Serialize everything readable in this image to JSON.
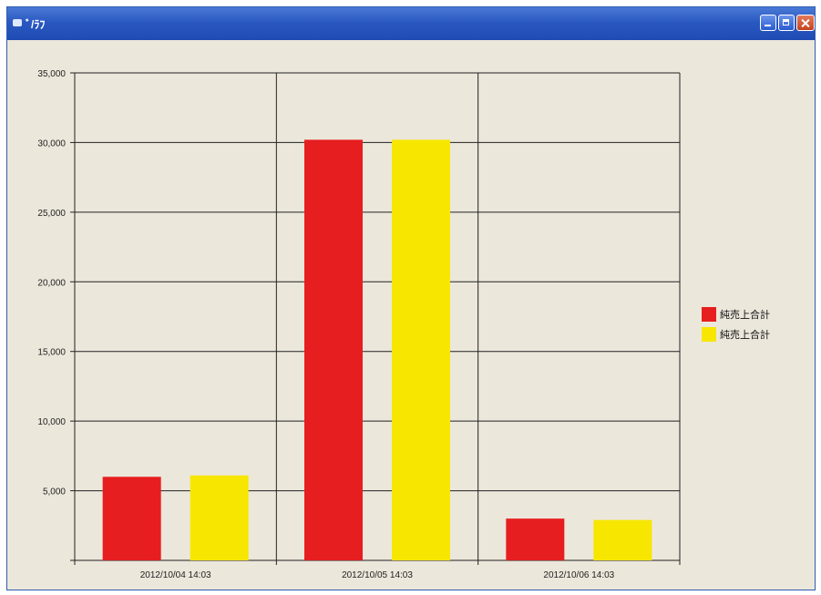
{
  "window": {
    "title": "ﾞ/ﾗﾌ"
  },
  "colors": {
    "series1": "#e61e20",
    "series2": "#f7e600",
    "grid": "#222222",
    "background": "#ece7db"
  },
  "chart_data": {
    "type": "bar",
    "categories": [
      "2012/10/04 14:03",
      "2012/10/05 14:03",
      "2012/10/06 14:03"
    ],
    "series": [
      {
        "name": "純売上合計",
        "values": [
          6000,
          30200,
          3000
        ]
      },
      {
        "name": "純売上合計",
        "values": [
          6100,
          30200,
          2900
        ]
      }
    ],
    "ylim": [
      0,
      35000
    ],
    "yticks": [
      5000,
      10000,
      15000,
      20000,
      25000,
      30000,
      35000
    ],
    "ytick_labels": [
      "5,000",
      "10,000",
      "15,000",
      "20,000",
      "25,000",
      "30,000",
      "35,000"
    ],
    "grid": true,
    "legend_position": "right",
    "title": "",
    "xlabel": "",
    "ylabel": ""
  }
}
